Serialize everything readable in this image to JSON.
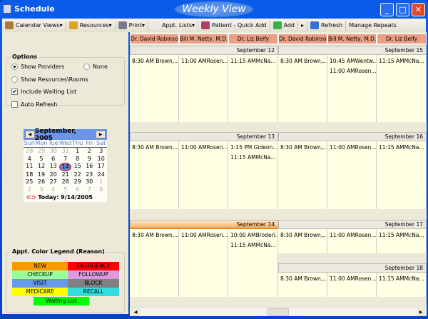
{
  "window": {
    "title": "Schedule",
    "view_title": "Weekly View"
  },
  "toolbar": [
    {
      "label": "Calendar Views",
      "icon": "calendar-icon",
      "dropdown": true,
      "color": "#b0783a"
    },
    {
      "label": "Resources",
      "icon": "resources-icon",
      "dropdown": true,
      "color": "#e0a020"
    },
    {
      "label": "Print",
      "icon": "printer-icon",
      "dropdown": true,
      "color": "#7a7a8a"
    },
    {
      "label": "Appt. Lists",
      "icon": "document-icon",
      "dropdown": true,
      "color": "#e8e8e8"
    },
    {
      "label": "Patient - Quick Add",
      "icon": "patients-icon",
      "dropdown": false,
      "color": "#b04060"
    },
    {
      "label": "Add",
      "icon": "plus-icon",
      "dropdown": false,
      "color": "#3cb040"
    },
    {
      "label": "Refresh",
      "icon": "refresh-icon",
      "dropdown": false,
      "color": "#3a70d0"
    },
    {
      "label": "Manage Repeats",
      "icon": "",
      "dropdown": false,
      "color": ""
    }
  ],
  "options": {
    "title": "Options",
    "show_providers": "Show Providers",
    "none": "None",
    "show_resources": "Show Resources\\Rooms",
    "include_waiting": "Include Waiting List",
    "auto_refresh": "Auto Refresh",
    "include_waiting_checked": true,
    "auto_refresh_checked": false,
    "selected": "Show Providers"
  },
  "calendar": {
    "month": "September, 2005",
    "dow": [
      "Sun",
      "Mon",
      "Tue",
      "Wed",
      "Thu",
      "Fri",
      "Sat"
    ],
    "days": [
      "28",
      "29",
      "30",
      "31",
      "1",
      "2",
      "3",
      "4",
      "5",
      "6",
      "7",
      "8",
      "9",
      "10",
      "11",
      "12",
      "13",
      "14",
      "15",
      "16",
      "17",
      "18",
      "19",
      "20",
      "21",
      "22",
      "23",
      "24",
      "25",
      "26",
      "27",
      "28",
      "29",
      "30",
      "1",
      "2",
      "3",
      "4",
      "5",
      "6",
      "7",
      "8"
    ],
    "today_label": "Today: 9/14/2005",
    "selected": "14"
  },
  "legend": {
    "title": "Appt. Color Legend (Reason)",
    "items": [
      {
        "label": "NEW",
        "color": "#ff9900"
      },
      {
        "label": "EMERGENCY",
        "color": "#ff0000"
      },
      {
        "label": "CHECKUP",
        "color": "#99ff99"
      },
      {
        "label": "FOLLOWUP",
        "color": "#dd99dd"
      },
      {
        "label": "VISIT",
        "color": "#6699ee"
      },
      {
        "label": "BLOCK",
        "color": "#808080"
      },
      {
        "label": "MEDICARE",
        "color": "#ffff00"
      },
      {
        "label": "RECALL",
        "color": "#33dddd"
      },
      {
        "label": "Waiting List",
        "color": "#00ff00"
      }
    ]
  },
  "providers": [
    "Dr. David Robinson",
    "Bill M. Netty, M.D.",
    "Dr. Liz Belfy"
  ],
  "days": [
    {
      "date": "September 12",
      "current": false,
      "appts": [
        [
          "8:30 AM Brown,..."
        ],
        [
          "11:00 AMRosen..."
        ],
        [
          "11:15 AMMcNa..."
        ]
      ]
    },
    {
      "date": "September 13",
      "current": false,
      "appts": [
        [
          "8:30 AM Brown,..."
        ],
        [
          "11:00 AMRosen..."
        ],
        [
          "1:15 PM  Gideon...",
          "11:15 AMMcNa..."
        ]
      ]
    },
    {
      "date": "September 14",
      "current": true,
      "appts": [
        [
          "8:30 AM Brown,..."
        ],
        [
          "11:00 AMRosen..."
        ],
        [
          "10:00 AMBroderi...",
          "11:15 AMMcNa..."
        ]
      ]
    },
    {
      "date": "September 15",
      "current": false,
      "appts": [
        [
          "8:30 AM Brown,..."
        ],
        [
          "10:45 AMWentw...",
          "11:00 AMRosen..."
        ],
        [
          "11:15 AMMcNa..."
        ]
      ]
    },
    {
      "date": "September 16",
      "current": false,
      "appts": [
        [
          "8:30 AM Brown,..."
        ],
        [
          "11:00 AMRosen..."
        ],
        [
          "11:15 AMMcNa..."
        ]
      ]
    },
    {
      "date": "September 17",
      "current": false,
      "appts": [
        [
          "8:30 AM Brown,..."
        ],
        [
          "11:00 AMRosen..."
        ],
        [
          "11:15 AMMcNa..."
        ]
      ]
    },
    {
      "date": "September 18",
      "current": false,
      "appts": [
        [
          "8:30 AM Brown,..."
        ],
        [
          "11:00 AMRosen..."
        ],
        [
          "11:15 AMMcNa..."
        ]
      ]
    }
  ]
}
